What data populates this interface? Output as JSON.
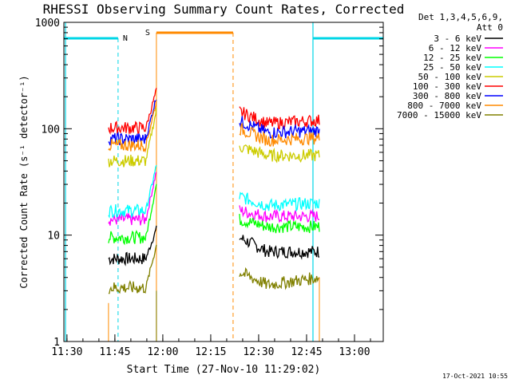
{
  "chart_data": {
    "type": "line",
    "title": "RHESSI Observing Summary Count Rates, Corrected",
    "xlabel": "Start Time (27-Nov-10 11:29:02)",
    "ylabel": "Corrected Count Rate (s⁻¹ detector⁻¹)",
    "yscale": "log",
    "ylim": [
      1,
      1000
    ],
    "xlim": [
      "11:29:02",
      "13:09"
    ],
    "x_ticks": [
      "11:30",
      "11:45",
      "12:00",
      "12:15",
      "12:30",
      "12:45",
      "13:00"
    ],
    "y_ticks": [
      "1",
      "10",
      "100",
      "1000"
    ],
    "grid": false,
    "legend_position": "right",
    "legend_header": [
      "Det 1,3,4,5,6,9,",
      "Att 0"
    ],
    "timestamp": "17-Oct-2021 10:55",
    "annotations": [
      {
        "text": "N",
        "color": "#00d6e6"
      },
      {
        "text": "S",
        "color": "#ff8a00"
      }
    ],
    "night_intervals": [
      {
        "from": "11:29:02",
        "to": "11:46:00"
      },
      {
        "from": "12:47:00",
        "to": "13:09:00"
      }
    ],
    "saa_interval": {
      "from": "11:58:00",
      "to": "12:22:00"
    },
    "data_windows": [
      {
        "from": "11:43:00",
        "to": "11:58:00"
      },
      {
        "from": "12:24:00",
        "to": "12:49:00"
      }
    ],
    "series": [
      {
        "name": "3 - 6 keV",
        "color": "#000000",
        "seg1": {
          "level": 6.0,
          "end": 11.5
        },
        "seg2": {
          "start": 9.5,
          "mid": 7.0,
          "end": 7.0
        }
      },
      {
        "name": "6 - 12 keV",
        "color": "#ff00ff",
        "seg1": {
          "level": 14.0,
          "end": 40
        },
        "seg2": {
          "start": 17.0,
          "mid": 15.0,
          "end": 15.0
        }
      },
      {
        "name": "12 - 25 keV",
        "color": "#00ff00",
        "seg1": {
          "level": 9.5,
          "end": 30
        },
        "seg2": {
          "start": 14.0,
          "mid": 12.0,
          "end": 12.0
        }
      },
      {
        "name": "25 - 50 keV",
        "color": "#00ffff",
        "seg1": {
          "level": 17.0,
          "end": 45
        },
        "seg2": {
          "start": 23.0,
          "mid": 19.0,
          "end": 20.0
        }
      },
      {
        "name": "50 - 100 keV",
        "color": "#cccc00",
        "seg1": {
          "level": 50.0,
          "end": 150
        },
        "seg2": {
          "start": 68.0,
          "mid": 56.0,
          "end": 56.0
        }
      },
      {
        "name": "100 - 300 keV",
        "color": "#ff0000",
        "seg1": {
          "level": 102.0,
          "end": 230
        },
        "seg2": {
          "start": 145.0,
          "mid": 112.0,
          "end": 120.0
        }
      },
      {
        "name": "300 - 800 keV",
        "color": "#0000ff",
        "seg1": {
          "level": 80.0,
          "end": 200
        },
        "seg2": {
          "start": 118.0,
          "mid": 92.0,
          "end": 96.0
        }
      },
      {
        "name": "800 - 7000 keV",
        "color": "#ff8a00",
        "seg1": {
          "level": 70.0,
          "end": 180
        },
        "seg2": {
          "start": 100.0,
          "mid": 78.0,
          "end": 82.0
        }
      },
      {
        "name": "7000 - 15000 keV",
        "color": "#808000",
        "seg1": {
          "level": 3.2,
          "end": 8
        },
        "seg2": {
          "start": 4.5,
          "mid": 3.4,
          "end": 4.0
        }
      }
    ]
  }
}
